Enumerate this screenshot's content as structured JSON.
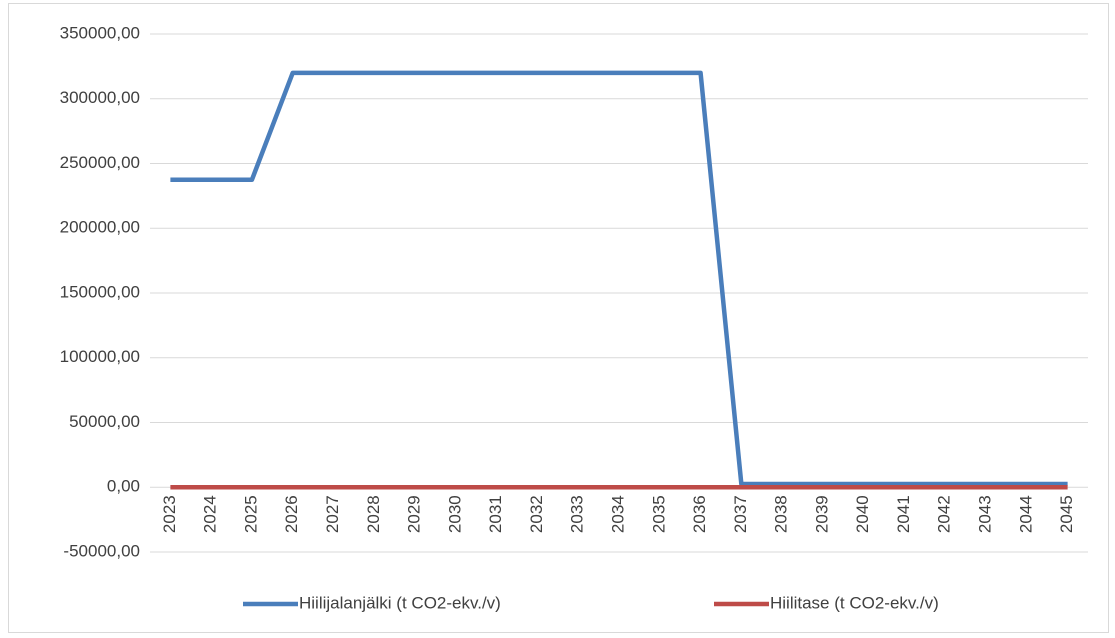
{
  "chart_data": {
    "type": "line",
    "categories": [
      "2023",
      "2024",
      "2025",
      "2026",
      "2027",
      "2028",
      "2029",
      "2030",
      "2031",
      "2032",
      "2033",
      "2034",
      "2035",
      "2036",
      "2037",
      "2038",
      "2039",
      "2040",
      "2041",
      "2042",
      "2043",
      "2044",
      "2045"
    ],
    "series": [
      {
        "name": "Hiilijalanjälki (t CO2-ekv./v)",
        "color": "#4a7ebb",
        "values": [
          237500,
          237500,
          237500,
          320000,
          320000,
          320000,
          320000,
          320000,
          320000,
          320000,
          320000,
          320000,
          320000,
          320000,
          2500,
          2500,
          2500,
          2500,
          2500,
          2500,
          2500,
          2500,
          2500
        ]
      },
      {
        "name": "Hiilitase (t CO2-ekv./v)",
        "color": "#be4b48",
        "values": [
          0,
          0,
          0,
          0,
          0,
          0,
          0,
          0,
          0,
          0,
          0,
          0,
          0,
          0,
          0,
          0,
          0,
          0,
          0,
          0,
          0,
          0,
          0
        ]
      }
    ],
    "ylim": [
      -50000,
      350000
    ],
    "yticks": [
      {
        "value": -50000,
        "label": "-50000,00"
      },
      {
        "value": 0,
        "label": "0,00"
      },
      {
        "value": 50000,
        "label": "50000,00"
      },
      {
        "value": 100000,
        "label": "100000,00"
      },
      {
        "value": 150000,
        "label": "150000,00"
      },
      {
        "value": 200000,
        "label": "200000,00"
      },
      {
        "value": 250000,
        "label": "250000,00"
      },
      {
        "value": 300000,
        "label": "300000,00"
      },
      {
        "value": 350000,
        "label": "350000,00"
      }
    ],
    "grid": true,
    "legend": "bottom"
  }
}
